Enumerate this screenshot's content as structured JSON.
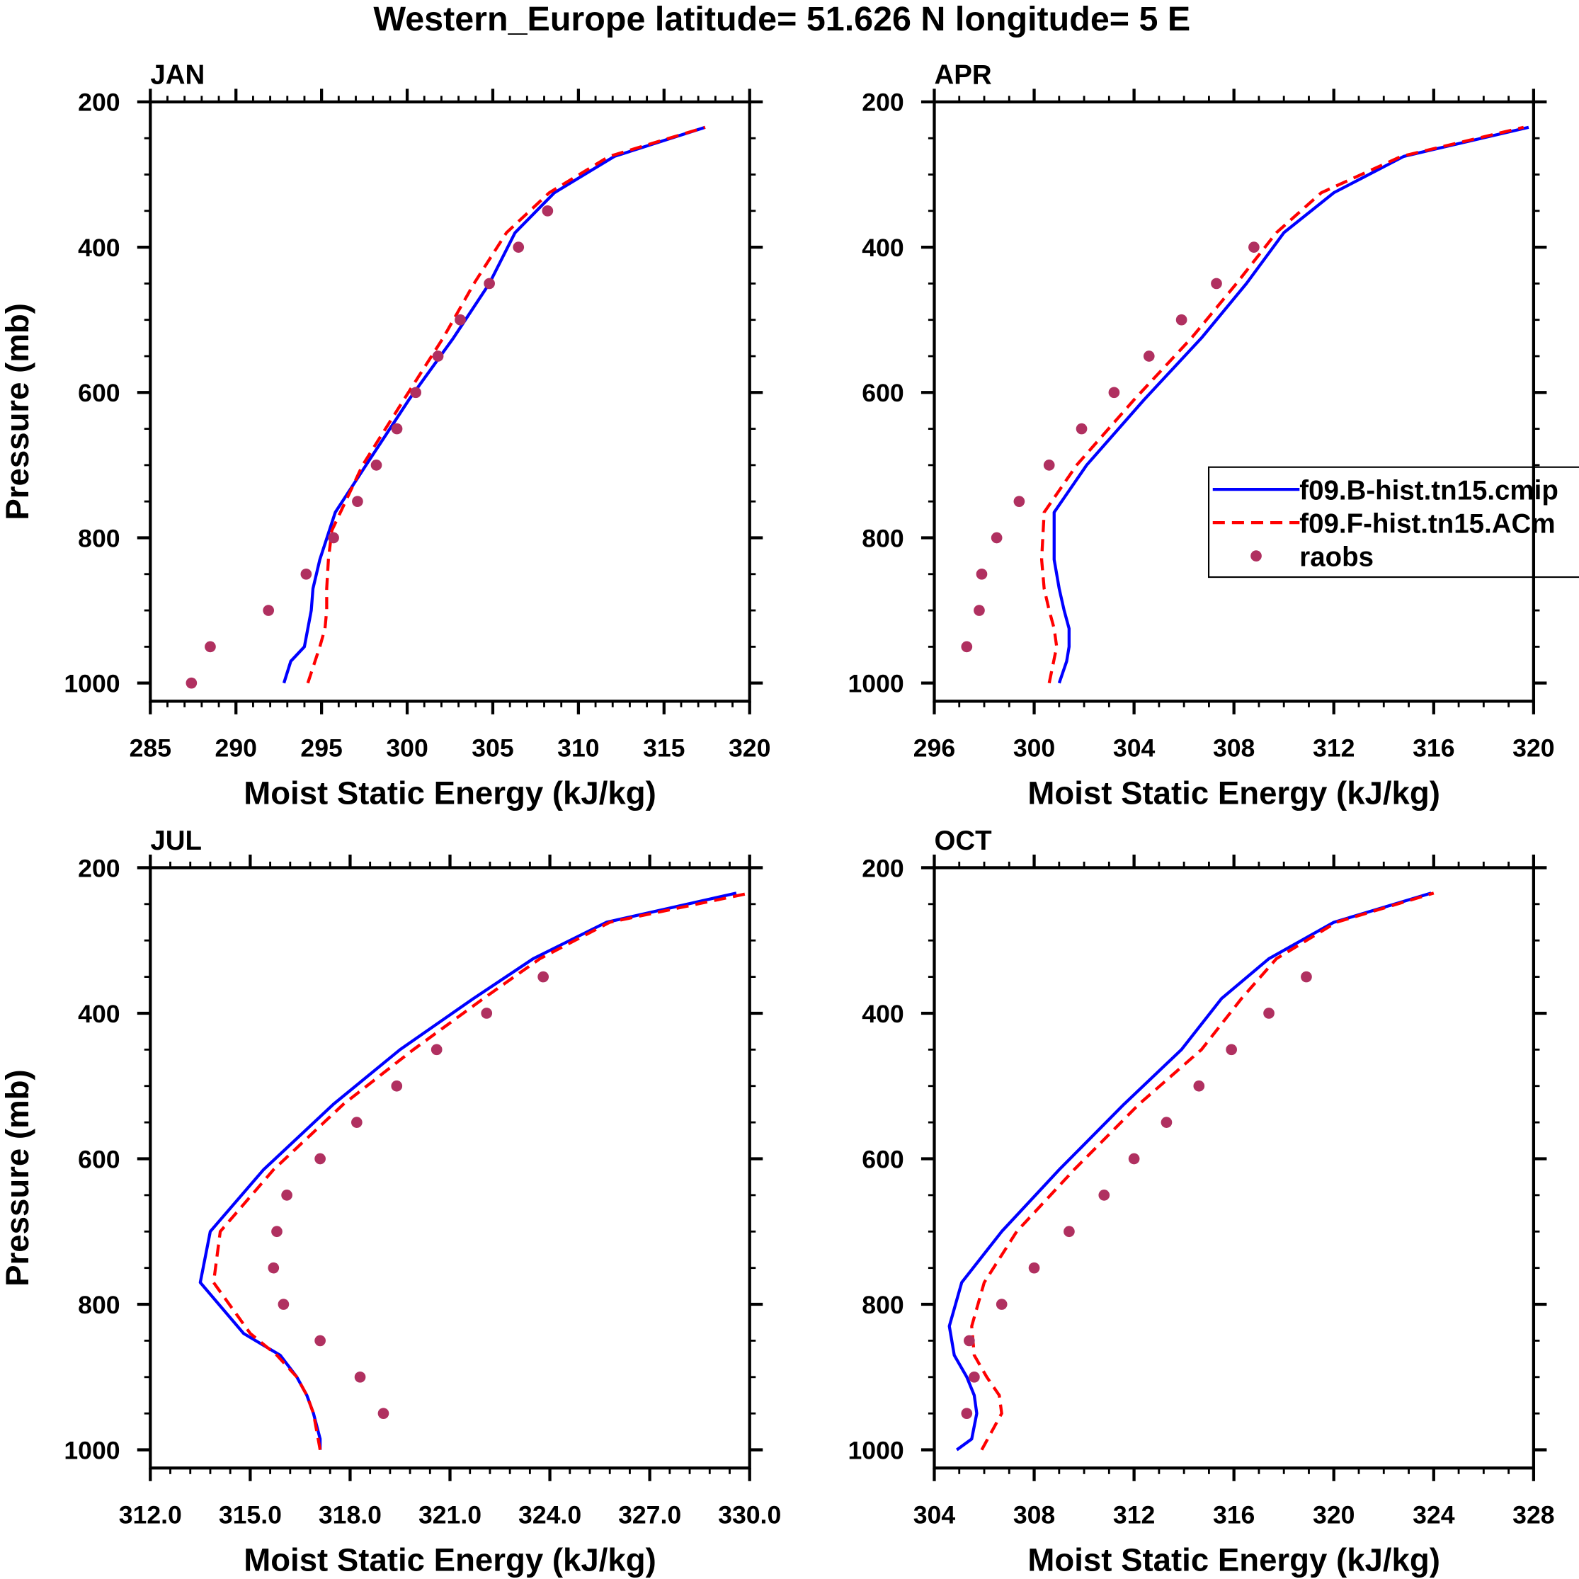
{
  "title": "Western_Europe  latitude= 51.626 N longitude= 5 E",
  "colors": {
    "model_b": "#0000ff",
    "model_f": "#ff0000",
    "raobs": "#b03060",
    "axis": "#000000"
  },
  "legend": {
    "panel": "APR",
    "entries": [
      {
        "label": "f09.B-hist.tn15.cmip",
        "style": "solid",
        "color": "#0000ff"
      },
      {
        "label": "f09.F-hist.tn15.ACm",
        "style": "dashed",
        "color": "#ff0000"
      },
      {
        "label": "raobs",
        "style": "marker",
        "color": "#b03060"
      }
    ]
  },
  "chart_data": [
    {
      "type": "line",
      "panel": "JAN",
      "xlabel": "Moist Static Energy (kJ/kg)",
      "ylabel": "Pressure (mb)",
      "xlim": [
        285,
        320
      ],
      "ylim": [
        1025,
        200
      ],
      "xticks": [
        285,
        290,
        295,
        300,
        305,
        310,
        315,
        320
      ],
      "xtick_labels": [
        "285",
        "290",
        "295",
        "300",
        "305",
        "310",
        "315",
        "320"
      ],
      "xminor": 1,
      "yticks": [
        200,
        400,
        600,
        800,
        1000
      ],
      "ytick_labels": [
        "200",
        "400",
        "600",
        "800",
        "1000"
      ],
      "series": [
        {
          "name": "f09.B-hist.tn15.cmip",
          "p": [
            1000,
            970,
            950,
            925,
            900,
            870,
            830,
            765,
            700,
            610,
            525,
            450,
            380,
            325,
            275,
            235
          ],
          "x": [
            292.8,
            293.2,
            294.0,
            294.2,
            294.4,
            294.5,
            294.9,
            295.8,
            297.6,
            300.1,
            302.7,
            304.8,
            306.3,
            308.6,
            312.1,
            317.4
          ]
        },
        {
          "name": "f09.F-hist.tn15.ACm",
          "p": [
            1000,
            950,
            925,
            900,
            870,
            830,
            790,
            765,
            700,
            610,
            525,
            450,
            380,
            325,
            275,
            235
          ],
          "x": [
            294.2,
            294.9,
            295.2,
            295.3,
            295.3,
            295.4,
            295.6,
            296.1,
            297.4,
            299.8,
            302.1,
            303.9,
            305.8,
            308.3,
            311.8,
            317.4
          ]
        },
        {
          "name": "raobs",
          "p": [
            350,
            400,
            450,
            500,
            550,
            600,
            650,
            700,
            750,
            800,
            850,
            900,
            950,
            1000
          ],
          "x": [
            308.2,
            306.5,
            304.8,
            303.1,
            301.8,
            300.5,
            299.4,
            298.2,
            297.1,
            295.7,
            294.1,
            291.9,
            288.5,
            287.4
          ]
        }
      ]
    },
    {
      "type": "line",
      "panel": "APR",
      "xlabel": "Moist Static Energy (kJ/kg)",
      "ylabel": "",
      "xlim": [
        296,
        320
      ],
      "ylim": [
        1025,
        200
      ],
      "xticks": [
        296,
        300,
        304,
        308,
        312,
        316,
        320
      ],
      "xtick_labels": [
        "296",
        "300",
        "304",
        "308",
        "312",
        "316",
        "320"
      ],
      "xminor": 1,
      "yticks": [
        200,
        400,
        600,
        800,
        1000
      ],
      "ytick_labels": [
        "200",
        "400",
        "600",
        "800",
        "1000"
      ],
      "series": [
        {
          "name": "f09.B-hist.tn15.cmip",
          "p": [
            1000,
            970,
            950,
            925,
            900,
            870,
            830,
            765,
            700,
            610,
            525,
            450,
            380,
            325,
            275,
            235
          ],
          "x": [
            301.0,
            301.3,
            301.4,
            301.4,
            301.2,
            301.0,
            300.8,
            300.8,
            302.1,
            304.4,
            306.7,
            308.5,
            310.0,
            312.0,
            314.8,
            319.8
          ]
        },
        {
          "name": "f09.F-hist.tn15.ACm",
          "p": [
            1000,
            950,
            925,
            900,
            870,
            830,
            765,
            700,
            610,
            525,
            450,
            380,
            325,
            275,
            235
          ],
          "x": [
            300.6,
            300.9,
            300.8,
            300.6,
            300.4,
            300.3,
            300.4,
            301.7,
            304.0,
            306.3,
            308.1,
            309.7,
            311.5,
            314.7,
            319.6
          ]
        },
        {
          "name": "raobs",
          "p": [
            400,
            450,
            500,
            550,
            600,
            650,
            700,
            750,
            800,
            850,
            900,
            950
          ],
          "x": [
            308.8,
            307.3,
            305.9,
            304.6,
            303.2,
            301.9,
            300.6,
            299.4,
            298.5,
            297.9,
            297.8,
            297.3
          ]
        }
      ]
    },
    {
      "type": "line",
      "panel": "JUL",
      "xlabel": "Moist Static Energy (kJ/kg)",
      "ylabel": "Pressure (mb)",
      "xlim": [
        312,
        330
      ],
      "ylim": [
        1025,
        200
      ],
      "xticks": [
        312,
        315,
        318,
        321,
        324,
        327,
        330
      ],
      "xtick_labels": [
        "312.0",
        "315.0",
        "318.0",
        "321.0",
        "324.0",
        "327.0",
        "330.0"
      ],
      "xminor": 0.6,
      "yticks": [
        200,
        400,
        600,
        800,
        1000
      ],
      "ytick_labels": [
        "200",
        "400",
        "600",
        "800",
        "1000"
      ],
      "series": [
        {
          "name": "f09.B-hist.tn15.cmip",
          "p": [
            1000,
            985,
            950,
            925,
            900,
            870,
            840,
            770,
            700,
            615,
            525,
            450,
            380,
            325,
            275,
            235
          ],
          "x": [
            317.1,
            317.1,
            316.9,
            316.7,
            316.4,
            315.9,
            314.8,
            313.5,
            313.8,
            315.4,
            317.5,
            319.5,
            321.7,
            323.5,
            325.7,
            329.6
          ]
        },
        {
          "name": "f09.F-hist.tn15.ACm",
          "p": [
            1000,
            950,
            925,
            900,
            870,
            840,
            770,
            700,
            615,
            525,
            450,
            380,
            325,
            275,
            235
          ],
          "x": [
            317.1,
            316.9,
            316.7,
            316.4,
            315.8,
            315.0,
            313.9,
            314.1,
            315.7,
            317.8,
            319.9,
            322.0,
            323.7,
            325.8,
            330.0
          ]
        },
        {
          "name": "raobs",
          "p": [
            350,
            400,
            450,
            500,
            550,
            600,
            650,
            700,
            750,
            800,
            850,
            900,
            950
          ],
          "x": [
            323.8,
            322.1,
            320.6,
            319.4,
            318.2,
            317.1,
            316.1,
            315.8,
            315.7,
            316.0,
            317.1,
            318.3,
            319.0
          ]
        }
      ]
    },
    {
      "type": "line",
      "panel": "OCT",
      "xlabel": "Moist Static Energy (kJ/kg)",
      "ylabel": "",
      "xlim": [
        304,
        328
      ],
      "ylim": [
        1025,
        200
      ],
      "xticks": [
        304,
        308,
        312,
        316,
        320,
        324,
        328
      ],
      "xtick_labels": [
        "304",
        "308",
        "312",
        "316",
        "320",
        "324",
        "328"
      ],
      "xminor": 1,
      "yticks": [
        200,
        400,
        600,
        800,
        1000
      ],
      "ytick_labels": [
        "200",
        "400",
        "600",
        "800",
        "1000"
      ],
      "series": [
        {
          "name": "f09.B-hist.tn15.cmip",
          "p": [
            1000,
            985,
            950,
            925,
            900,
            870,
            830,
            770,
            700,
            615,
            525,
            450,
            380,
            325,
            275,
            235
          ],
          "x": [
            304.9,
            305.5,
            305.7,
            305.6,
            305.3,
            304.8,
            304.6,
            305.1,
            306.7,
            309.0,
            311.6,
            313.9,
            315.5,
            317.4,
            320.0,
            323.9
          ]
        },
        {
          "name": "f09.F-hist.tn15.ACm",
          "p": [
            1000,
            950,
            925,
            900,
            870,
            830,
            770,
            700,
            615,
            525,
            450,
            380,
            325,
            275,
            235
          ],
          "x": [
            305.9,
            306.7,
            306.6,
            306.1,
            305.6,
            305.5,
            306.0,
            307.3,
            309.6,
            312.2,
            314.7,
            316.3,
            317.7,
            320.1,
            324.0
          ]
        },
        {
          "name": "raobs",
          "p": [
            350,
            400,
            450,
            500,
            550,
            600,
            650,
            700,
            750,
            800,
            850,
            900,
            950
          ],
          "x": [
            318.9,
            317.4,
            315.9,
            314.6,
            313.3,
            312.0,
            310.8,
            309.4,
            308.0,
            306.7,
            305.4,
            305.6,
            305.3
          ]
        }
      ]
    }
  ]
}
